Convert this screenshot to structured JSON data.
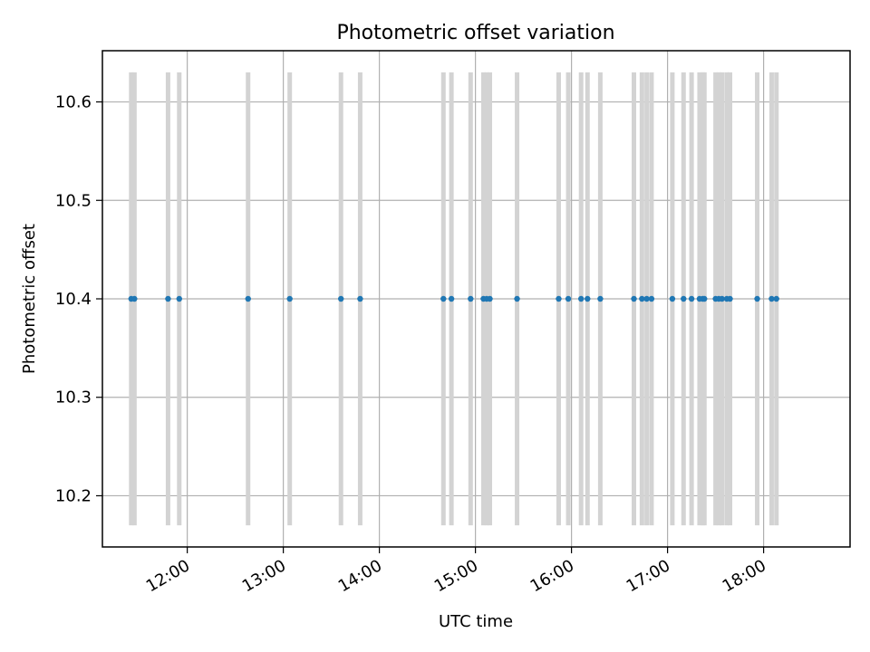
{
  "chart_data": {
    "type": "scatter",
    "title": "Photometric offset variation",
    "xlabel": "UTC time",
    "ylabel": "Photometric offset",
    "x_type": "time",
    "xlim": [
      "11:07",
      "18:54"
    ],
    "ylim": [
      10.148,
      10.652
    ],
    "x_ticks": [
      "12:00",
      "13:00",
      "14:00",
      "15:00",
      "16:00",
      "17:00",
      "18:00"
    ],
    "y_ticks": [
      10.2,
      10.3,
      10.4,
      10.5,
      10.6
    ],
    "y_tick_labels": [
      "10.2",
      "10.3",
      "10.4",
      "10.5",
      "10.6"
    ],
    "grid": true,
    "legend": "none",
    "colors": {
      "point": "#1f77b4",
      "errorbar": "#d3d3d3",
      "grid": "#b0b0b0"
    },
    "series": [
      {
        "x": [
          "11:25",
          "11:27",
          "11:48",
          "11:55",
          "12:38",
          "13:04",
          "13:36",
          "13:48",
          "14:40",
          "14:45",
          "14:57",
          "15:05",
          "15:07",
          "15:09",
          "15:26",
          "15:52",
          "15:58",
          "16:06",
          "16:10",
          "16:18",
          "16:39",
          "16:44",
          "16:47",
          "16:50",
          "17:03",
          "17:10",
          "17:15",
          "17:20",
          "17:22",
          "17:23",
          "17:30",
          "17:32",
          "17:34",
          "17:37",
          "17:39",
          "17:56",
          "18:05",
          "18:08"
        ],
        "y": [
          10.4,
          10.4,
          10.4,
          10.4,
          10.4,
          10.4,
          10.4,
          10.4,
          10.4,
          10.4,
          10.4,
          10.4,
          10.4,
          10.4,
          10.4,
          10.4,
          10.4,
          10.4,
          10.4,
          10.4,
          10.4,
          10.4,
          10.4,
          10.4,
          10.4,
          10.4,
          10.4,
          10.4,
          10.4,
          10.4,
          10.4,
          10.4,
          10.4,
          10.4,
          10.4,
          10.4,
          10.4,
          10.4
        ],
        "yerr": 0.23
      }
    ]
  }
}
